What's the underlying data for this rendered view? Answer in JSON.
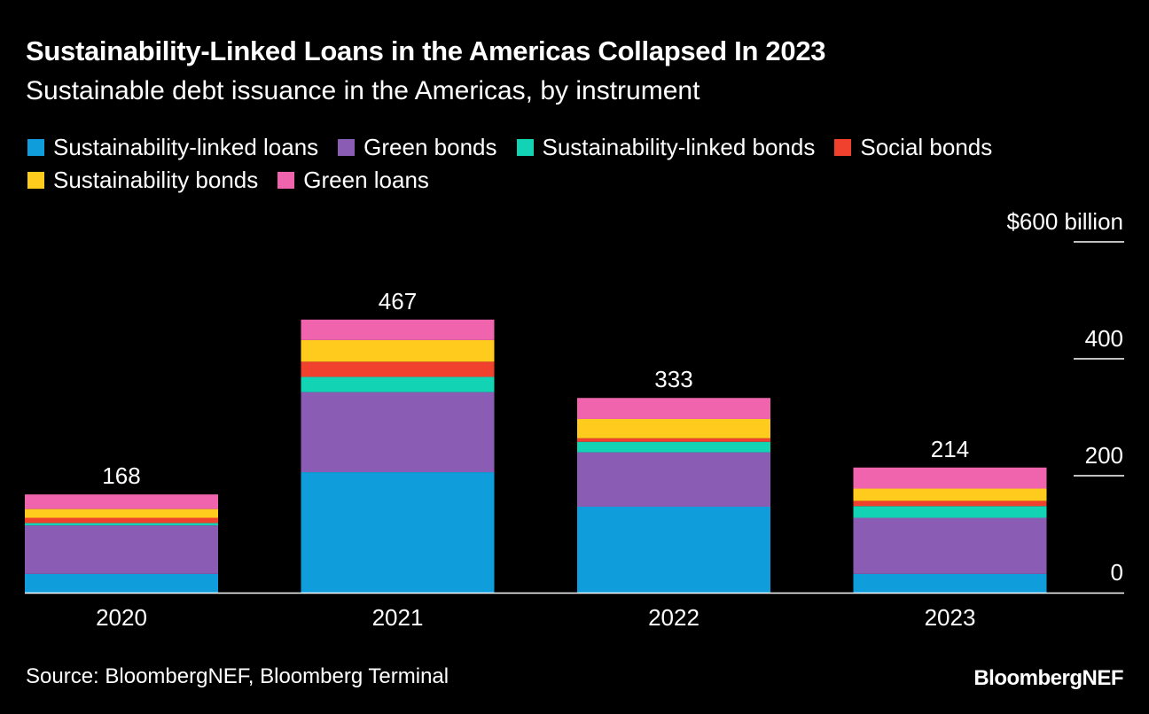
{
  "header": {
    "title": "Sustainability-Linked Loans in the Americas Collapsed In 2023",
    "subtitle": "Sustainable debt issuance in the Americas, by instrument"
  },
  "footer": {
    "source": "Source: BloombergNEF, Bloomberg Terminal",
    "brand": "BloombergNEF"
  },
  "chart_data": {
    "type": "bar",
    "stacked": true,
    "categories": [
      "2020",
      "2021",
      "2022",
      "2023"
    ],
    "series": [
      {
        "name": "Sustainability-linked loans",
        "color": "#0f9edb",
        "values": [
          32,
          206,
          147,
          32
        ]
      },
      {
        "name": "Green bonds",
        "color": "#8a5cb3",
        "values": [
          83,
          137,
          93,
          96
        ]
      },
      {
        "name": "Sustainability-linked bonds",
        "color": "#13d3b5",
        "values": [
          4,
          26,
          18,
          20
        ]
      },
      {
        "name": "Social bonds",
        "color": "#f0412e",
        "values": [
          9,
          26,
          6,
          9
        ]
      },
      {
        "name": "Sustainability bonds",
        "color": "#ffcc1e",
        "values": [
          15,
          37,
          33,
          21
        ]
      },
      {
        "name": "Green loans",
        "color": "#ef64ac",
        "values": [
          25,
          35,
          36,
          36
        ]
      }
    ],
    "totals": [
      168,
      467,
      333,
      214
    ],
    "total_labels": [
      "168",
      "467",
      "333",
      "214"
    ],
    "y_ticks": [
      {
        "value": 0,
        "label": "0"
      },
      {
        "value": 200,
        "label": "200"
      },
      {
        "value": 400,
        "label": "400"
      },
      {
        "value": 600,
        "label": "$600 billion"
      }
    ],
    "ylim": [
      0,
      600
    ],
    "axis_position": "right",
    "legend_position": "top-left",
    "grid": false
  }
}
